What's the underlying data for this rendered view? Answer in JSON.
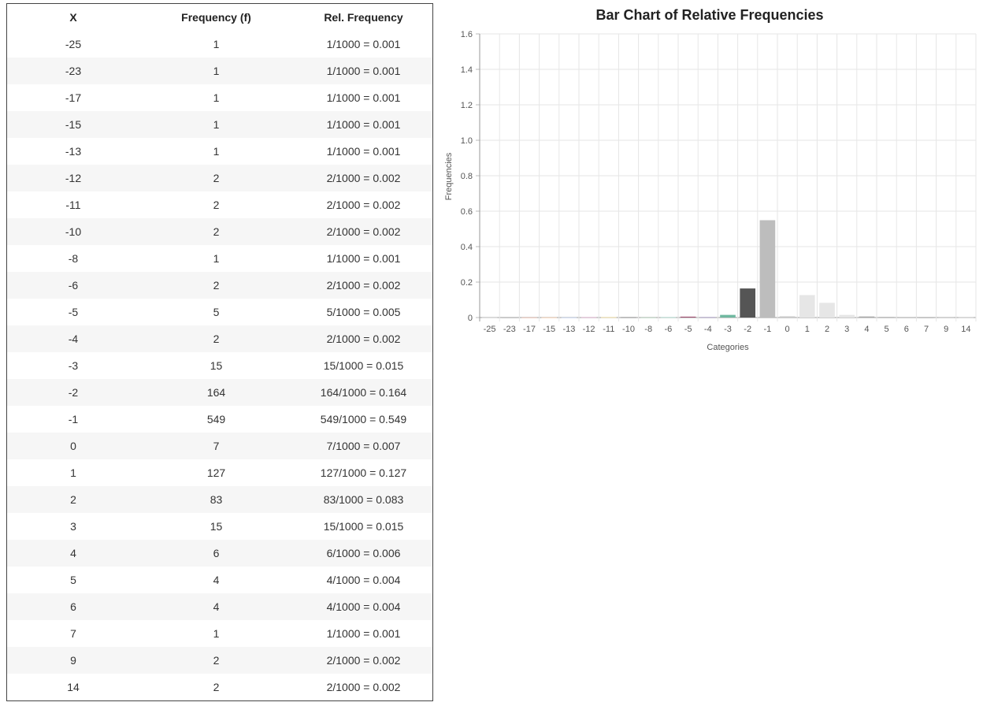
{
  "table": {
    "headers": {
      "x": "X",
      "freq": "Frequency (f)",
      "rel": "Rel. Frequency"
    },
    "rows": [
      {
        "x": "-25",
        "f": "1",
        "rel": "1/1000 = 0.001"
      },
      {
        "x": "-23",
        "f": "1",
        "rel": "1/1000 = 0.001"
      },
      {
        "x": "-17",
        "f": "1",
        "rel": "1/1000 = 0.001"
      },
      {
        "x": "-15",
        "f": "1",
        "rel": "1/1000 = 0.001"
      },
      {
        "x": "-13",
        "f": "1",
        "rel": "1/1000 = 0.001"
      },
      {
        "x": "-12",
        "f": "2",
        "rel": "2/1000 = 0.002"
      },
      {
        "x": "-11",
        "f": "2",
        "rel": "2/1000 = 0.002"
      },
      {
        "x": "-10",
        "f": "2",
        "rel": "2/1000 = 0.002"
      },
      {
        "x": "-8",
        "f": "1",
        "rel": "1/1000 = 0.001"
      },
      {
        "x": "-6",
        "f": "2",
        "rel": "2/1000 = 0.002"
      },
      {
        "x": "-5",
        "f": "5",
        "rel": "5/1000 = 0.005"
      },
      {
        "x": "-4",
        "f": "2",
        "rel": "2/1000 = 0.002"
      },
      {
        "x": "-3",
        "f": "15",
        "rel": "15/1000 = 0.015"
      },
      {
        "x": "-2",
        "f": "164",
        "rel": "164/1000 = 0.164"
      },
      {
        "x": "-1",
        "f": "549",
        "rel": "549/1000 = 0.549"
      },
      {
        "x": "0",
        "f": "7",
        "rel": "7/1000 = 0.007"
      },
      {
        "x": "1",
        "f": "127",
        "rel": "127/1000 = 0.127"
      },
      {
        "x": "2",
        "f": "83",
        "rel": "83/1000 = 0.083"
      },
      {
        "x": "3",
        "f": "15",
        "rel": "15/1000 = 0.015"
      },
      {
        "x": "4",
        "f": "6",
        "rel": "6/1000 = 0.006"
      },
      {
        "x": "5",
        "f": "4",
        "rel": "4/1000 = 0.004"
      },
      {
        "x": "6",
        "f": "4",
        "rel": "4/1000 = 0.004"
      },
      {
        "x": "7",
        "f": "1",
        "rel": "1/1000 = 0.001"
      },
      {
        "x": "9",
        "f": "2",
        "rel": "2/1000 = 0.002"
      },
      {
        "x": "14",
        "f": "2",
        "rel": "2/1000 = 0.002"
      }
    ]
  },
  "chart_data": {
    "type": "bar",
    "title": "Bar Chart of Relative Frequencies",
    "xlabel": "Categories",
    "ylabel": "Frequencies",
    "categories": [
      "-25",
      "-23",
      "-17",
      "-15",
      "-13",
      "-12",
      "-11",
      "-10",
      "-8",
      "-6",
      "-5",
      "-4",
      "-3",
      "-2",
      "-1",
      "0",
      "1",
      "2",
      "3",
      "4",
      "5",
      "6",
      "7",
      "9",
      "14"
    ],
    "values": [
      0.001,
      0.001,
      0.001,
      0.001,
      0.001,
      0.002,
      0.002,
      0.002,
      0.001,
      0.002,
      0.005,
      0.002,
      0.015,
      0.164,
      0.549,
      0.007,
      0.127,
      0.083,
      0.015,
      0.006,
      0.004,
      0.004,
      0.001,
      0.002,
      0.002
    ],
    "bar_colors": [
      "#c7c7c7",
      "#9e9e9e",
      "#e0b0a0",
      "#f2c6a4",
      "#b7c7e6",
      "#d4a0c0",
      "#e8d48c",
      "#7a7a7a",
      "#a8c8b0",
      "#9ed0c0",
      "#a05070",
      "#9080b0",
      "#70b8a0",
      "#555555",
      "#bdbdbd",
      "#cccccc",
      "#e6e6e6",
      "#e6e6e6",
      "#e6e6e6",
      "#aaaaaa",
      "#bbbbbb",
      "#cccccc",
      "#999999",
      "#aaaaaa",
      "#bbbbbb"
    ],
    "ylim": [
      0,
      1.6
    ],
    "yticks": [
      0,
      0.2,
      0.4,
      0.6,
      0.8,
      1.0,
      1.2,
      1.4,
      1.6
    ],
    "ytick_labels": [
      "0",
      "0.2",
      "0.4",
      "0.6",
      "0.8",
      "1.0",
      "1.2",
      "1.4",
      "1.6"
    ],
    "grid": true,
    "legend": "none"
  }
}
